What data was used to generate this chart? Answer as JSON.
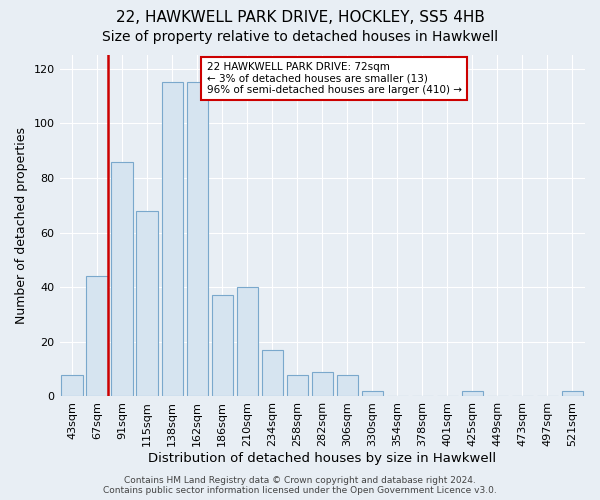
{
  "title": "22, HAWKWELL PARK DRIVE, HOCKLEY, SS5 4HB",
  "subtitle": "Size of property relative to detached houses in Hawkwell",
  "xlabel": "Distribution of detached houses by size in Hawkwell",
  "ylabel": "Number of detached properties",
  "categories": [
    "43sqm",
    "67sqm",
    "91sqm",
    "115sqm",
    "138sqm",
    "162sqm",
    "186sqm",
    "210sqm",
    "234sqm",
    "258sqm",
    "282sqm",
    "306sqm",
    "330sqm",
    "354sqm",
    "378sqm",
    "401sqm",
    "425sqm",
    "449sqm",
    "473sqm",
    "497sqm",
    "521sqm"
  ],
  "values": [
    8,
    44,
    86,
    68,
    115,
    115,
    37,
    40,
    17,
    8,
    9,
    8,
    2,
    0,
    0,
    0,
    2,
    0,
    0,
    0,
    2
  ],
  "bar_color": "#d6e4f0",
  "bar_edge_color": "#7aa8cc",
  "highlight_bar_index": 1,
  "highlight_color": "#cc0000",
  "annotation_box_text": "22 HAWKWELL PARK DRIVE: 72sqm\n← 3% of detached houses are smaller (13)\n96% of semi-detached houses are larger (410) →",
  "annotation_box_color": "#cc0000",
  "ylim": [
    0,
    125
  ],
  "yticks": [
    0,
    20,
    40,
    60,
    80,
    100,
    120
  ],
  "title_fontsize": 11,
  "subtitle_fontsize": 10,
  "xlabel_fontsize": 9.5,
  "ylabel_fontsize": 9,
  "tick_fontsize": 8,
  "footer_text": "Contains HM Land Registry data © Crown copyright and database right 2024.\nContains public sector information licensed under the Open Government Licence v3.0.",
  "footer_fontsize": 6.5,
  "bg_color": "#e8eef4",
  "grid_color": "#ffffff"
}
